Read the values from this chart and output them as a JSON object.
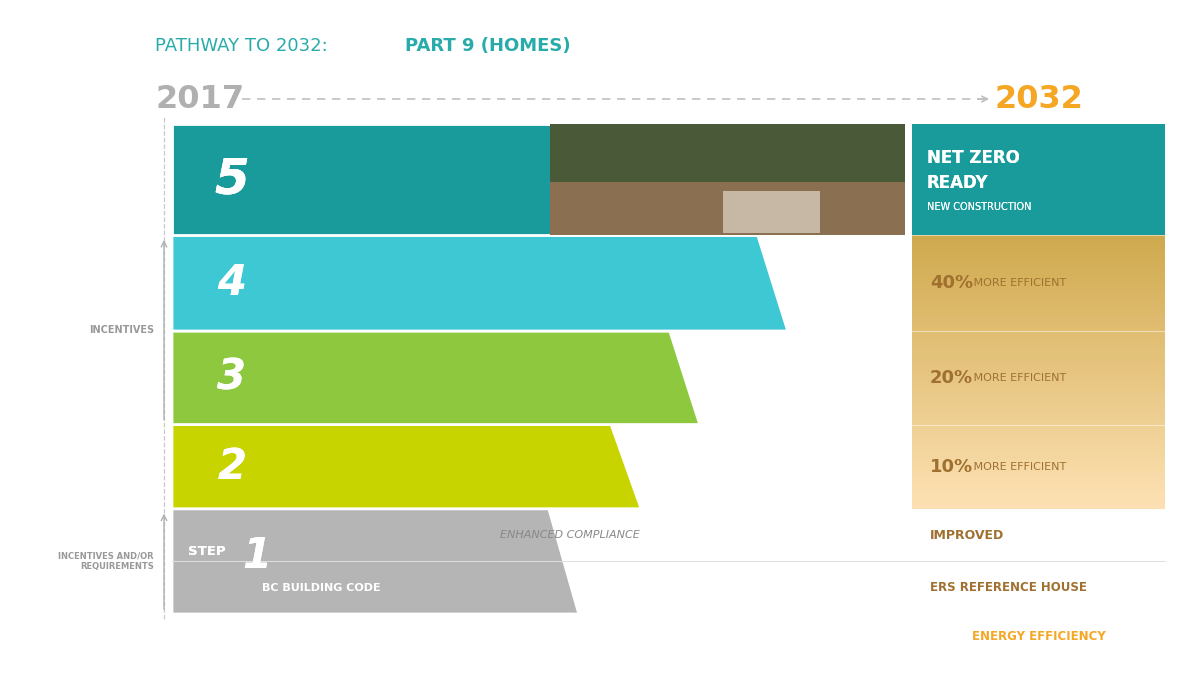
{
  "bg_color": "#ffffff",
  "title_normal": "PATHWAY TO 2032: ",
  "title_bold": "PART 9 (HOMES)",
  "title_color": "#2aabab",
  "year_left": "2017",
  "year_right": "2032",
  "year_left_color": "#b0b0b0",
  "year_right_color": "#f5a623",
  "step_colors": [
    "#b5b5b5",
    "#c8d400",
    "#8dc83f",
    "#3ec8d4",
    "#1a9b9b"
  ],
  "step_numbers": [
    "1",
    "2",
    "3",
    "4",
    "5"
  ],
  "pct_labels": [
    "40%",
    "20%",
    "10%"
  ],
  "pct_suffix": " MORE EFFICIENT",
  "net_zero_line1": "NET ZERO",
  "net_zero_line2": "READY",
  "net_zero_line3": "NEW CONSTRUCTION",
  "step1_mid_label": "ENHANCED COMPLIANCE",
  "step1_right_label": "IMPROVED",
  "step1_bottom_label": "BC BUILDING CODE",
  "step1_far_label": "ERS REFERENCE HOUSE",
  "energy_efficiency_label": "ENERGY EFFICIENCY",
  "energy_efficiency_color": "#f5a623",
  "incentives_label": "INCENTIVES",
  "req_label": "INCENTIVES AND/OR\nREQUIREMENTS",
  "left_text_color": "#999999",
  "orange_top": "#f5a83a",
  "orange_bottom": "#fce0b0",
  "eff_text_color": "#a07030",
  "improved_color": "#a07030",
  "ers_color": "#a07030"
}
